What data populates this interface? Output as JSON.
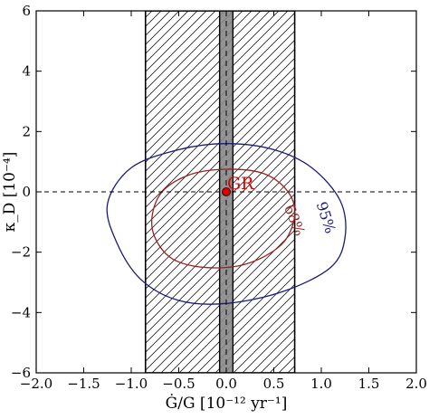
{
  "chart_data": {
    "type": "contour",
    "xlabel": "Ġ/G [10⁻¹² yr⁻¹]",
    "ylabel": "κ_D [10⁻⁴]",
    "xlim": [
      -2.0,
      2.0
    ],
    "ylim": [
      -6,
      6
    ],
    "xticks": [
      -2.0,
      -1.5,
      -1.0,
      -0.5,
      0.0,
      0.5,
      1.0,
      1.5,
      2.0
    ],
    "xtick_labels": [
      "−2.0",
      "−1.5",
      "−1.0",
      "−0.5",
      "0.0",
      "0.5",
      "1.0",
      "1.5",
      "2.0"
    ],
    "yticks": [
      -6,
      -4,
      -2,
      0,
      2,
      4,
      6
    ],
    "ytick_labels": [
      "−6",
      "−4",
      "−2",
      "0",
      "2",
      "4",
      "6"
    ],
    "reference_line": {
      "y": 0,
      "style": "dashed"
    },
    "vertical_dashed_line": {
      "x": 0.0
    },
    "hatched_band": {
      "x": [
        -0.85,
        0.72
      ]
    },
    "gray_band": {
      "x": [
        -0.07,
        0.07
      ],
      "color": "#888888"
    },
    "contours": [
      {
        "name": "95%",
        "color": "#1a1a7a",
        "label_x": 1.0,
        "label_y": -0.9,
        "points": [
          [
            0.0,
            1.6
          ],
          [
            0.5,
            1.4
          ],
          [
            0.9,
            0.8
          ],
          [
            1.2,
            -0.3
          ],
          [
            1.25,
            -1.5
          ],
          [
            1.1,
            -2.5
          ],
          [
            0.6,
            -3.3
          ],
          [
            0.0,
            -3.7
          ],
          [
            -0.5,
            -3.6
          ],
          [
            -0.9,
            -2.9
          ],
          [
            -1.15,
            -1.7
          ],
          [
            -1.25,
            -0.4
          ],
          [
            -1.0,
            0.8
          ],
          [
            -0.5,
            1.4
          ],
          [
            0.0,
            1.6
          ]
        ]
      },
      {
        "name": "68%",
        "color": "#992222",
        "label_x": 0.67,
        "label_y": -1.0,
        "points": [
          [
            0.0,
            0.75
          ],
          [
            0.4,
            0.6
          ],
          [
            0.65,
            0.0
          ],
          [
            0.72,
            -0.8
          ],
          [
            0.58,
            -1.75
          ],
          [
            0.2,
            -2.4
          ],
          [
            -0.25,
            -2.5
          ],
          [
            -0.6,
            -2.15
          ],
          [
            -0.78,
            -1.2
          ],
          [
            -0.7,
            -0.1
          ],
          [
            -0.4,
            0.55
          ],
          [
            0.0,
            0.75
          ]
        ]
      }
    ],
    "point": {
      "label": "GR",
      "x": 0.0,
      "y": 0.0,
      "color": "#dd0000"
    }
  }
}
